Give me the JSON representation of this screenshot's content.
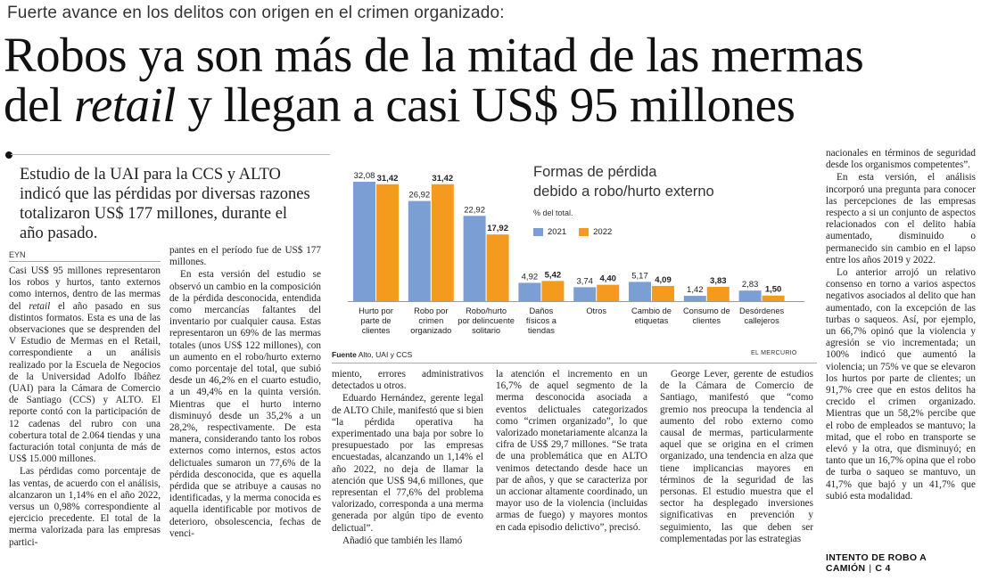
{
  "kicker": "Fuerte avance en los delitos con origen en el crimen organizado:",
  "headline": {
    "line1": "Robos ya son más de la mitad de las mermas",
    "line2_pre": "del ",
    "line2_italic": "retail",
    "line2_post": " y llegan a casi US$ 95 millones"
  },
  "deck": "Estudio de la UAI para la CCS y ALTO indicó que las pérdidas por diversas razones totalizaron US$ 177 millones, durante el año pasado.",
  "byline": "EYN",
  "col1": {
    "p1a": "Casi US$ 95 millones representaron los robos y hurtos, tanto externos como internos, dentro de las mermas del ",
    "p1_italic": "retail",
    "p1b": " el año pasado en sus distintos formatos. Esta es una de las observaciones que se desprenden del V Estudio de Mermas en el Retail, correspondiente a un análisis realizado por la Escuela de Negocios de la Universidad Adolfo Ibáñez (UAI) para la Cámara de Comercio de Santiago (CCS) y ALTO. El reporte contó con la participación de 12 cadenas del rubro con una cobertura total de 2.064 tiendas y una facturación total conjunta de más de US$ 15.000 millones.",
    "p2": "Las pérdidas como porcentaje de las ventas, de acuerdo con el análisis, alcanzaron un 1,14% en el año 2022, versus un 0,98% correspondiente al ejercicio precedente. El total de la merma valorizada para las empresas partici-"
  },
  "col2": {
    "p1": "pantes en el período fue de US$ 177 millones.",
    "p2": "En esta versión del estudio se observó un cambio en la composición de la pérdida desconocida, entendida como mercancías faltantes del inventario por cualquier causa. Estas representaron un 69% de las mermas totales (unos US$ 122 millones), con un aumento en el robo/hurto externo como porcentaje del total, que subió desde un 46,2% en el cuarto estudio, a un 49,4% en la quinta versión. Mientras que el hurto interno disminuyó desde un 35,2% a un 28,2%, respectivamente. De esta manera, considerando tanto los robos externos como internos, estos actos delictuales sumaron un 77,6% de la pérdida desconocida, que es aquella pérdida que se atribuye a causas no identificadas, y la merma conocida es aquella identificable por motivos de deterioro, obsolescencia, fechas de venci-"
  },
  "col3": {
    "p1": "miento, errores administrativos detectados u otros.",
    "p2": "Eduardo Hernández, gerente legal de ALTO Chile, manifestó que si bien “la pérdida operativa ha experimentado una baja por sobre lo presupuestado por las empresas encuestadas, alcanzando un 1,14% el año 2022, no deja de llamar la atención que US$ 94,6 millones, que representan el 77,6% del problema valorizado, corresponda a una merma generada por algún tipo de evento delictual”.",
    "p3": "Añadió que también les llamó"
  },
  "col4": {
    "p1": "la atención el incremento en un 16,7% de aquel segmento de la merma desconocida asociada a eventos delictuales categorizados como “crimen organizado”, lo que valorizado monetariamente alcanza la cifra de US$ 29,7 millones. “Se trata de una problemática que en ALTO venimos detectando desde hace un par de años, y que se caracteriza por un accionar altamente coordinado, un mayor uso de la violencia (incluidas armas de fuego) y mayores montos en cada episodio delictivo”, precisó."
  },
  "col5": {
    "p1": "George Lever, gerente de estudios de la Cámara de Comercio de Santiago, manifestó que “como gremio nos preocupa la tendencia al aumento del robo externo como causal de mermas, particularmente aquel que se origina en el crimen organizado, una tendencia en alza que tiene implicancias mayores en términos de la seguridad de las personas. El estudio muestra que el sector ha desplegado inversiones significativas en prevención y seguimiento, las que deben ser complementadas por las estrategias"
  },
  "col6": {
    "p1": "nacionales en términos de seguridad desde los organismos competentes”.",
    "p2": "En esta versión, el análisis incorporó una pregunta para conocer las percepciones de las empresas respecto a si un conjunto de aspectos relacionados con el delito había aumentado, disminuido o permanecido sin cambio en el lapso entre los años 2019 y 2022.",
    "p3": "Lo anterior arrojó un relativo consenso en torno a varios aspectos negativos asociados al delito que han aumentado, con la excepción de las turbas o saqueos. Así, por ejemplo, un 66,7% opinó que la violencia y agresión se vio incrementada; un 100% indicó que aumentó la violencia; un 75% ve que se elevaron los hurtos por parte de clientes; un 91,7% cree que en estos delitos ha crecido el crimen organizado. Mientras que un 58,2% percibe que el robo de empleados se mantuvo; la mitad, que el robo en transporte se elevó y la otra, que disminuyó; en tanto que un 16,7% opina que el robo de turba o saqueo se mantuvo, un 41,7% que bajó y un 41,7% que subió esta modalidad."
  },
  "footer": {
    "ref": "INTENTO DE ROBO A CAMIÓN",
    "page": "C 4"
  },
  "source": {
    "label": "Fuente",
    "text": " Alto, UAI y CCS"
  },
  "credit": "EL MERCURIO",
  "colors": {
    "series_2021": "#7b9fd4",
    "series_2022": "#f39a1f"
  },
  "chart_data": {
    "type": "bar",
    "title_line1": "Formas de pérdida",
    "title_line2": "debido a robo/hurto externo",
    "unit": "% del total.",
    "legend_position": "top-right",
    "categories": [
      [
        "Hurto por",
        "parte de",
        "clientes"
      ],
      [
        "Robo por",
        "crimen",
        "organizado"
      ],
      [
        "Robo/hurto",
        "por delincuente",
        "solitario"
      ],
      [
        "Daños",
        "físicos a",
        "tiendas"
      ],
      [
        "Otros"
      ],
      [
        "Cambio de",
        "etiquetas"
      ],
      [
        "Consumo de",
        "clientes"
      ],
      [
        "Desórdenes",
        "callejeros"
      ]
    ],
    "series": [
      {
        "name": "2021",
        "values": [
          32.08,
          26.92,
          22.92,
          4.92,
          3.74,
          5.17,
          1.42,
          2.83
        ],
        "labels": [
          "32,08",
          "26,92",
          "22,92",
          "4,92",
          "3,74",
          "5,17",
          "1,42",
          "2,83"
        ]
      },
      {
        "name": "2022",
        "values": [
          31.42,
          31.42,
          17.92,
          5.42,
          4.4,
          4.09,
          3.83,
          1.5
        ],
        "labels": [
          "31,42",
          "31,42",
          "17,92",
          "5,42",
          "4,40",
          "4,09",
          "3,83",
          "1,50"
        ]
      }
    ],
    "ylim": [
      0,
      34
    ]
  }
}
